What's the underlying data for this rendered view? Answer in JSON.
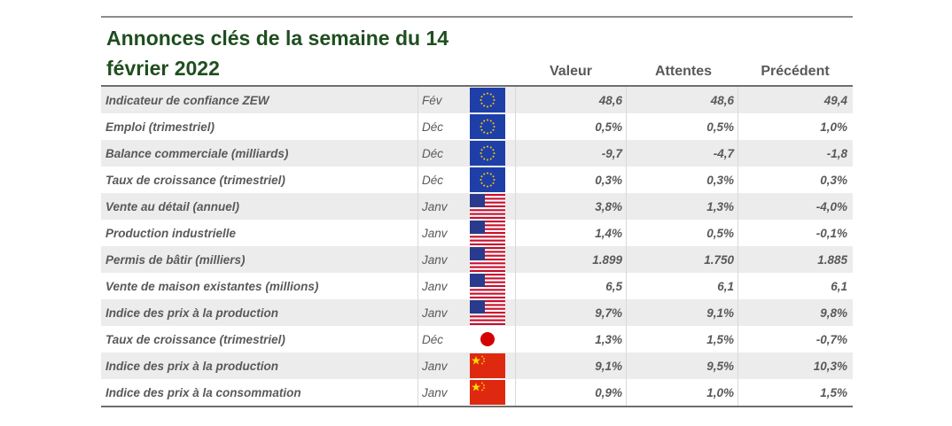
{
  "title": "Annonces clés de la semaine du 14 février 2022",
  "columns": {
    "value": "Valeur",
    "expected": "Attentes",
    "previous": "Précédent"
  },
  "rows": [
    {
      "indicator": "Indicateur de confiance ZEW",
      "period": "Fév",
      "flag": "eu-flag-icon",
      "value": "48,6",
      "expected": "48,6",
      "previous": "49,4"
    },
    {
      "indicator": "Emploi  (trimestriel)",
      "period": "Déc",
      "flag": "eu-flag-icon",
      "value": "0,5%",
      "expected": "0,5%",
      "previous": "1,0%"
    },
    {
      "indicator": "Balance commerciale (milliards)",
      "period": "Déc",
      "flag": "eu-flag-icon",
      "value": "-9,7",
      "expected": "-4,7",
      "previous": "-1,8"
    },
    {
      "indicator": "Taux de croissance (trimestriel)",
      "period": "Déc",
      "flag": "eu-flag-icon",
      "value": "0,3%",
      "expected": "0,3%",
      "previous": "0,3%"
    },
    {
      "indicator": "Vente au détail (annuel)",
      "period": "Janv",
      "flag": "us-flag-icon",
      "value": "3,8%",
      "expected": "1,3%",
      "previous": "-4,0%"
    },
    {
      "indicator": "Production industrielle",
      "period": "Janv",
      "flag": "us-flag-icon",
      "value": "1,4%",
      "expected": "0,5%",
      "previous": "-0,1%"
    },
    {
      "indicator": "Permis de bâtir (milliers)",
      "period": "Janv",
      "flag": "us-flag-icon",
      "value": "1.899",
      "expected": "1.750",
      "previous": "1.885"
    },
    {
      "indicator": "Vente de maison existantes (millions)",
      "period": "Janv",
      "flag": "us-flag-icon",
      "value": "6,5",
      "expected": "6,1",
      "previous": "6,1"
    },
    {
      "indicator": "Indice des prix à la production",
      "period": "Janv",
      "flag": "us-flag-icon",
      "value": "9,7%",
      "expected": "9,1%",
      "previous": "9,8%"
    },
    {
      "indicator": "Taux de croissance (trimestriel)",
      "period": "Déc",
      "flag": "japan-flag-icon",
      "value": "1,3%",
      "expected": "1,5%",
      "previous": "-0,7%"
    },
    {
      "indicator": "Indice des prix à la production",
      "period": "Janv",
      "flag": "china-flag-icon",
      "value": "9,1%",
      "expected": "9,5%",
      "previous": "10,3%"
    },
    {
      "indicator": "Indice des prix à la consommation",
      "period": "Janv",
      "flag": "china-flag-icon",
      "value": "0,9%",
      "expected": "1,0%",
      "previous": "1,5%"
    }
  ]
}
